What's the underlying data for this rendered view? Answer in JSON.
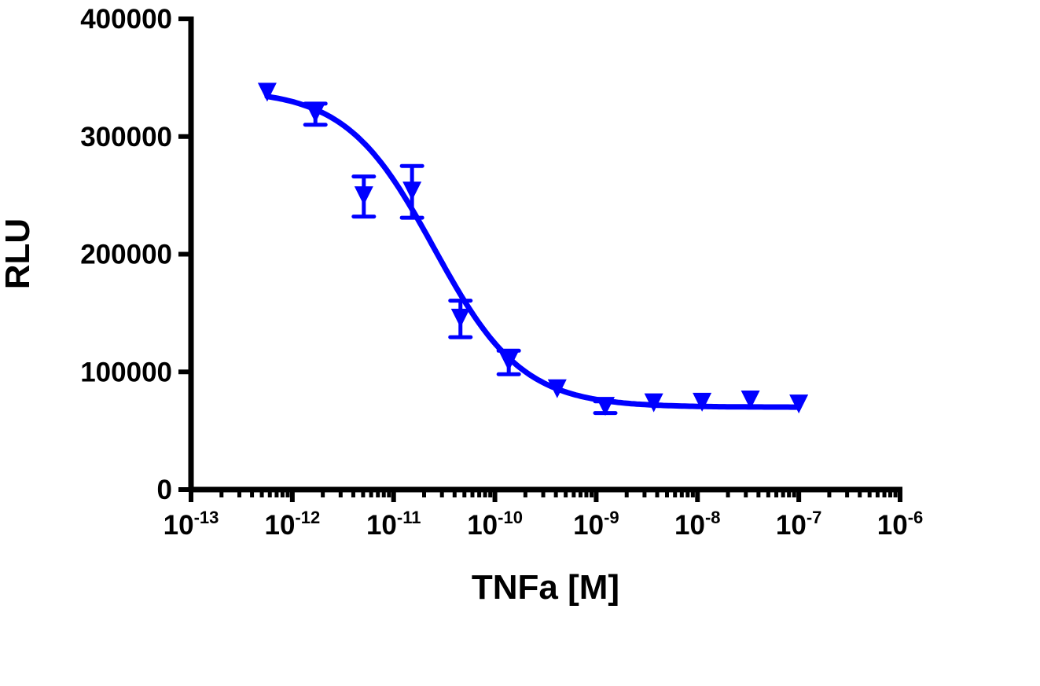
{
  "chart_data": {
    "type": "scatter",
    "title": "",
    "xlabel": "TNFa [M]",
    "ylabel": "RLU",
    "x_scale": "log",
    "xlim": [
      1e-13,
      1e-06
    ],
    "ylim": [
      0,
      400000
    ],
    "grid": false,
    "x_ticks": [
      {
        "base": "10",
        "exp": "-13"
      },
      {
        "base": "10",
        "exp": "-12"
      },
      {
        "base": "10",
        "exp": "-11"
      },
      {
        "base": "10",
        "exp": "-10"
      },
      {
        "base": "10",
        "exp": "-9"
      },
      {
        "base": "10",
        "exp": "-8"
      },
      {
        "base": "10",
        "exp": "-7"
      },
      {
        "base": "10",
        "exp": "-6"
      }
    ],
    "y_ticks": [
      "0",
      "100000",
      "200000",
      "300000",
      "400000"
    ],
    "y_tick_values": [
      0,
      100000,
      200000,
      300000,
      400000
    ],
    "series": [
      {
        "marker": "triangle-down",
        "color": "#0000ff",
        "x": [
          5.65e-13,
          1.69e-12,
          5.08e-12,
          1.52e-11,
          4.57e-11,
          1.37e-10,
          4.12e-10,
          1.23e-09,
          3.7e-09,
          1.11e-08,
          3.33e-08,
          1e-07
        ],
        "y": [
          337000,
          319000,
          249000,
          253000,
          145000,
          108000,
          85000,
          70000,
          73000,
          73500,
          75500,
          72000
        ],
        "error": [
          0,
          9000,
          17000,
          22000,
          15500,
          10000,
          0,
          5000,
          0,
          0,
          0,
          0
        ]
      }
    ],
    "fit": {
      "model": "sigmoidal dose-response",
      "top": 340000,
      "bottom": 70000,
      "logEC50": -10.6,
      "hill_slope": -1.0,
      "color": "#0000ff"
    }
  }
}
